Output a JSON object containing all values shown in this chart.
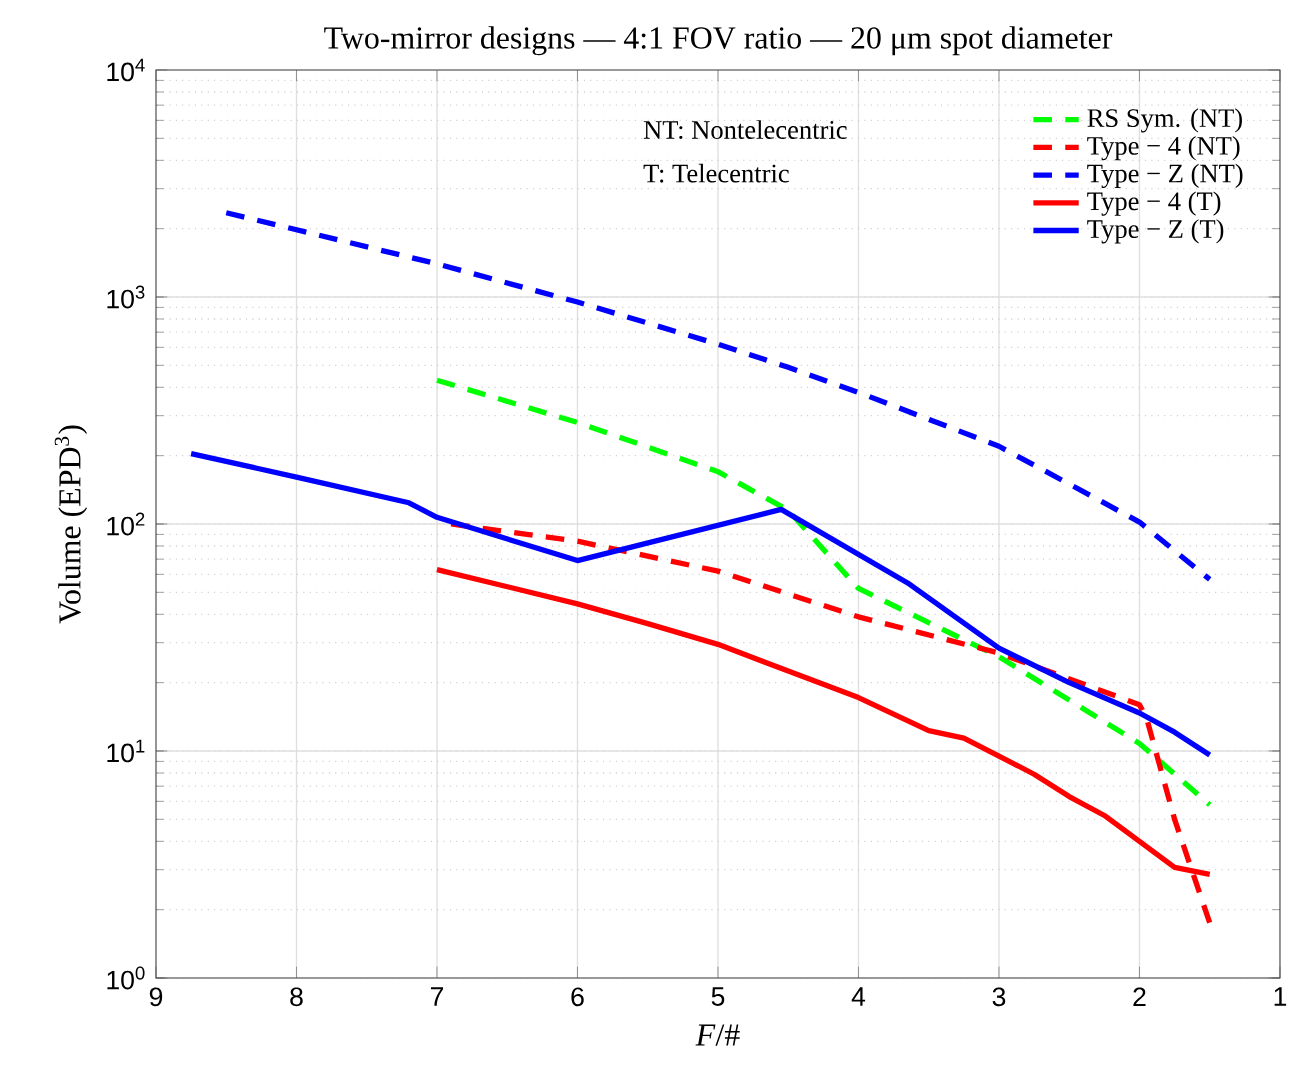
{
  "chart_data": {
    "type": "line",
    "title": "Two-mirror designs — 4:1 FOV ratio — 20 μm spot diameter",
    "xlabel": "*F*/#",
    "ylabel": "Volume (EPD$^{3}$)",
    "xlim": [
      9,
      1
    ],
    "xticks": [
      9,
      8,
      7,
      6,
      5,
      4,
      3,
      2,
      1
    ],
    "ylim": [
      1,
      10000
    ],
    "yticks": [
      {
        "value": 1,
        "label": "10$^{0}$"
      },
      {
        "value": 10,
        "label": "10$^{1}$"
      },
      {
        "value": 100,
        "label": "10$^{2}$"
      },
      {
        "value": 1000,
        "label": "10$^{3}$"
      },
      {
        "value": 10000,
        "label": "10$^{4}$"
      }
    ],
    "log": "y",
    "grid": true,
    "legend": "top right",
    "marker": "none",
    "annotations": [
      "NT: Nontelecentric",
      "T: Telecentric"
    ],
    "series": [
      {
        "name": "RS Sym. (NT)",
        "color": "#00ff00",
        "line_style": "dashed",
        "x": [
          7,
          6,
          5,
          4.5,
          4,
          3,
          2,
          1.5
        ],
        "values": [
          430,
          280,
          170,
          115,
          52,
          26,
          10.8,
          5.8
        ]
      },
      {
        "name": "Type − 4 (NT)",
        "color": "#ff0000",
        "line_style": "dashed",
        "x": [
          6.9,
          6,
          5,
          4,
          3,
          2,
          1.95,
          1.75,
          1.5
        ],
        "values": [
          100,
          84,
          62,
          39,
          27,
          16,
          14,
          5,
          1.75
        ]
      },
      {
        "name": "Type − Z (NT)",
        "color": "#0000ff",
        "line_style": "dashed",
        "x": [
          8.5,
          7,
          6,
          5,
          4.5,
          4,
          3,
          2.5,
          2,
          1.5
        ],
        "values": [
          2350,
          1400,
          950,
          620,
          490,
          380,
          220,
          150,
          102,
          57
        ]
      },
      {
        "name": "Type − 4 (T)",
        "color": "#ff0000",
        "line_style": "solid",
        "x": [
          7,
          6,
          5.5,
          5,
          4.5,
          4,
          3.5,
          3.25,
          3,
          2.75,
          2.5,
          2.25,
          2,
          1.75,
          1.5
        ],
        "values": [
          63,
          44.5,
          36.4,
          29.5,
          22.5,
          17.2,
          12.3,
          11.4,
          9.5,
          7.9,
          6.3,
          5.2,
          4.0,
          3.07,
          2.86
        ]
      },
      {
        "name": "Type − Z (T)",
        "color": "#0000ff",
        "line_style": "solid",
        "x": [
          8.75,
          8,
          7.2,
          7,
          6,
          4.55,
          3.65,
          3,
          2.5,
          2,
          1.75,
          1.5
        ],
        "values": [
          204,
          161,
          124,
          107,
          69,
          116,
          55,
          28.4,
          20,
          14.7,
          12.1,
          9.6
        ]
      }
    ]
  }
}
